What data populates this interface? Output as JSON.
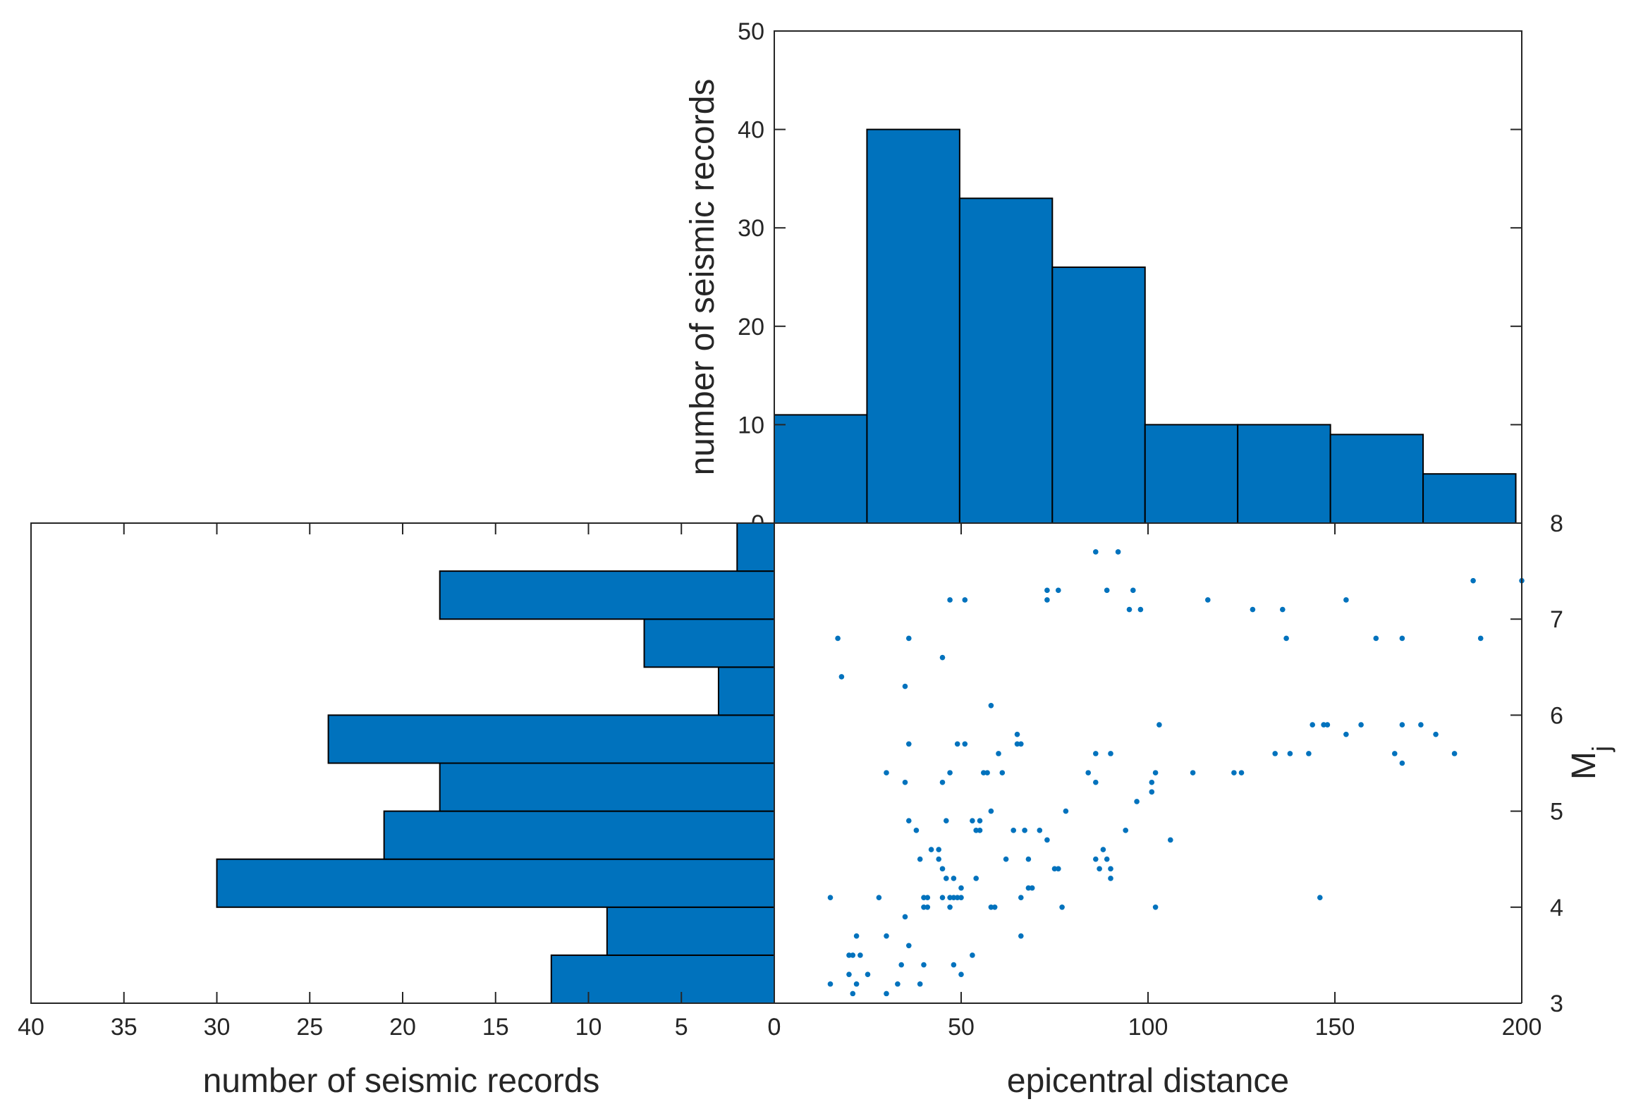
{
  "chart_data": [
    {
      "type": "bar",
      "orientation": "vertical",
      "name": "epicentral-distance-histogram",
      "bin_edges": [
        0,
        24.8,
        49.6,
        74.4,
        99.2,
        124.0,
        148.8,
        173.6,
        198.4
      ],
      "values": [
        11,
        40,
        33,
        26,
        10,
        10,
        9,
        5
      ],
      "xlim": [
        0,
        200
      ],
      "ylim": [
        0,
        50
      ],
      "yticks": [
        "0",
        "10",
        "20",
        "30",
        "40",
        "50"
      ],
      "ylabel": "number of seismic records",
      "color": "#0072BD"
    },
    {
      "type": "bar",
      "orientation": "horizontal",
      "name": "magnitude-histogram",
      "bin_edges": [
        3.0,
        3.5,
        4.0,
        4.5,
        5.0,
        5.5,
        6.0,
        6.5,
        7.0,
        7.5,
        8.0
      ],
      "values": [
        12,
        9,
        30,
        21,
        18,
        24,
        3,
        7,
        18,
        2
      ],
      "xlim": [
        40,
        0
      ],
      "ylim": [
        3,
        8
      ],
      "xticks": [
        "40",
        "35",
        "30",
        "25",
        "20",
        "15",
        "10",
        "5",
        "0"
      ],
      "xlabel": "number of seismic records",
      "color": "#0072BD"
    },
    {
      "type": "scatter",
      "name": "distance-magnitude-scatter",
      "xlim": [
        0,
        200
      ],
      "ylim": [
        3,
        8
      ],
      "xticks": [
        "0",
        "50",
        "100",
        "150",
        "200"
      ],
      "yticks": [
        "3",
        "4",
        "5",
        "6",
        "7",
        "8"
      ],
      "xlabel": "epicentral distance",
      "ylabel": "M",
      "ylabel_subscript": "j",
      "color": "#0072BD",
      "points": [
        [
          86,
          7.7
        ],
        [
          92,
          7.7
        ],
        [
          73,
          7.3
        ],
        [
          76,
          7.3
        ],
        [
          89,
          7.3
        ],
        [
          96,
          7.3
        ],
        [
          187,
          7.4
        ],
        [
          200,
          7.4
        ],
        [
          47,
          7.2
        ],
        [
          51,
          7.2
        ],
        [
          73,
          7.2
        ],
        [
          116,
          7.2
        ],
        [
          153,
          7.2
        ],
        [
          95,
          7.1
        ],
        [
          98,
          7.1
        ],
        [
          128,
          7.1
        ],
        [
          136,
          7.1
        ],
        [
          17,
          6.8
        ],
        [
          36,
          6.8
        ],
        [
          137,
          6.8
        ],
        [
          161,
          6.8
        ],
        [
          168,
          6.8
        ],
        [
          189,
          6.8
        ],
        [
          45,
          6.6
        ],
        [
          18,
          6.4
        ],
        [
          35,
          6.3
        ],
        [
          58,
          6.1
        ],
        [
          103,
          5.9
        ],
        [
          144,
          5.9
        ],
        [
          147,
          5.9
        ],
        [
          148,
          5.9
        ],
        [
          157,
          5.9
        ],
        [
          168,
          5.9
        ],
        [
          173,
          5.9
        ],
        [
          177,
          5.8
        ],
        [
          153,
          5.8
        ],
        [
          65,
          5.8
        ],
        [
          49,
          5.7
        ],
        [
          51,
          5.7
        ],
        [
          65,
          5.7
        ],
        [
          66,
          5.7
        ],
        [
          36,
          5.7
        ],
        [
          60,
          5.6
        ],
        [
          86,
          5.6
        ],
        [
          90,
          5.6
        ],
        [
          134,
          5.6
        ],
        [
          138,
          5.6
        ],
        [
          143,
          5.6
        ],
        [
          166,
          5.6
        ],
        [
          182,
          5.6
        ],
        [
          168,
          5.5
        ],
        [
          102,
          5.4
        ],
        [
          112,
          5.4
        ],
        [
          123,
          5.4
        ],
        [
          125,
          5.4
        ],
        [
          30,
          5.4
        ],
        [
          47,
          5.4
        ],
        [
          56,
          5.4
        ],
        [
          57,
          5.4
        ],
        [
          61,
          5.4
        ],
        [
          84,
          5.4
        ],
        [
          35,
          5.3
        ],
        [
          45,
          5.3
        ],
        [
          86,
          5.3
        ],
        [
          101,
          5.3
        ],
        [
          101,
          5.2
        ],
        [
          97,
          5.1
        ],
        [
          58,
          5.0
        ],
        [
          78,
          5.0
        ],
        [
          36,
          4.9
        ],
        [
          46,
          4.9
        ],
        [
          53,
          4.9
        ],
        [
          55,
          4.9
        ],
        [
          38,
          4.8
        ],
        [
          54,
          4.8
        ],
        [
          55,
          4.8
        ],
        [
          64,
          4.8
        ],
        [
          67,
          4.8
        ],
        [
          71,
          4.8
        ],
        [
          73,
          4.7
        ],
        [
          94,
          4.8
        ],
        [
          106,
          4.7
        ],
        [
          42,
          4.6
        ],
        [
          44,
          4.6
        ],
        [
          88,
          4.6
        ],
        [
          39,
          4.5
        ],
        [
          44,
          4.5
        ],
        [
          62,
          4.5
        ],
        [
          68,
          4.5
        ],
        [
          86,
          4.5
        ],
        [
          89,
          4.5
        ],
        [
          45,
          4.4
        ],
        [
          75,
          4.4
        ],
        [
          76,
          4.4
        ],
        [
          87,
          4.4
        ],
        [
          90,
          4.4
        ],
        [
          90,
          4.3
        ],
        [
          46,
          4.3
        ],
        [
          48,
          4.3
        ],
        [
          54,
          4.3
        ],
        [
          50,
          4.2
        ],
        [
          68,
          4.2
        ],
        [
          69,
          4.2
        ],
        [
          66,
          4.1
        ],
        [
          15,
          4.1
        ],
        [
          28,
          4.1
        ],
        [
          40,
          4.1
        ],
        [
          41,
          4.1
        ],
        [
          45,
          4.1
        ],
        [
          47,
          4.1
        ],
        [
          48,
          4.1
        ],
        [
          49,
          4.1
        ],
        [
          50,
          4.1
        ],
        [
          146,
          4.1
        ],
        [
          40,
          4.0
        ],
        [
          41,
          4.0
        ],
        [
          47,
          4.0
        ],
        [
          58,
          4.0
        ],
        [
          59,
          4.0
        ],
        [
          77,
          4.0
        ],
        [
          102,
          4.0
        ],
        [
          35,
          3.9
        ],
        [
          22,
          3.7
        ],
        [
          30,
          3.7
        ],
        [
          66,
          3.7
        ],
        [
          36,
          3.6
        ],
        [
          21,
          3.5
        ],
        [
          23,
          3.5
        ],
        [
          20,
          3.5
        ],
        [
          53,
          3.5
        ],
        [
          48,
          3.4
        ],
        [
          34,
          3.4
        ],
        [
          40,
          3.4
        ],
        [
          20,
          3.3
        ],
        [
          25,
          3.3
        ],
        [
          50,
          3.3
        ],
        [
          15,
          3.2
        ],
        [
          22,
          3.2
        ],
        [
          33,
          3.2
        ],
        [
          39,
          3.2
        ],
        [
          21,
          3.1
        ],
        [
          30,
          3.1
        ]
      ]
    }
  ]
}
